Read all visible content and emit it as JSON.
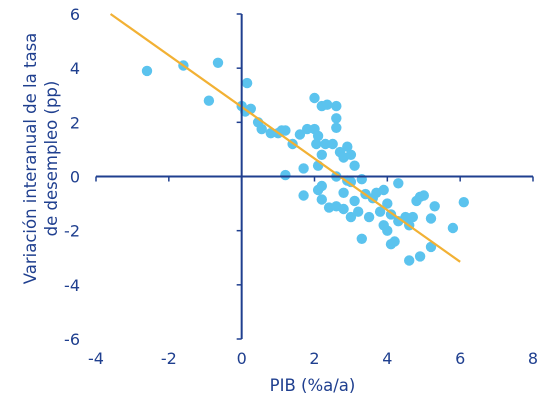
{
  "chart_data": {
    "type": "scatter",
    "xlabel": "PIB (%a/a)",
    "ylabel_lines": [
      "Variación interanual de la tasa",
      "de desempleo (pp)"
    ],
    "xlim": [
      -4,
      8
    ],
    "ylim": [
      -6,
      6
    ],
    "x_ticks": [
      -4,
      -2,
      0,
      2,
      4,
      6,
      8
    ],
    "y_ticks": [
      -6,
      -4,
      -2,
      0,
      2,
      4,
      6
    ],
    "grid": "none",
    "legend": "none",
    "colors": {
      "points": "#5bc3ee",
      "trendline": "#f2b134",
      "axes": "#1f3f8f",
      "text": "#1f3f8f"
    },
    "trendline": {
      "x": [
        -3.6,
        6.0
      ],
      "y": [
        6.0,
        -3.15
      ]
    },
    "points": [
      [
        -2.6,
        3.9
      ],
      [
        -1.6,
        4.1
      ],
      [
        -0.65,
        4.2
      ],
      [
        -0.9,
        2.8
      ],
      [
        0.15,
        3.45
      ],
      [
        0.0,
        2.6
      ],
      [
        0.1,
        2.4
      ],
      [
        0.25,
        2.5
      ],
      [
        0.45,
        2.0
      ],
      [
        0.55,
        1.75
      ],
      [
        0.8,
        1.6
      ],
      [
        1.0,
        1.6
      ],
      [
        1.1,
        1.7
      ],
      [
        1.2,
        1.7
      ],
      [
        1.4,
        1.2
      ],
      [
        1.6,
        1.55
      ],
      [
        1.8,
        1.75
      ],
      [
        2.0,
        1.75
      ],
      [
        2.1,
        1.5
      ],
      [
        2.05,
        1.2
      ],
      [
        2.0,
        2.9
      ],
      [
        2.2,
        2.6
      ],
      [
        2.35,
        2.65
      ],
      [
        2.6,
        2.6
      ],
      [
        2.6,
        2.15
      ],
      [
        2.6,
        1.8
      ],
      [
        2.3,
        1.2
      ],
      [
        2.5,
        1.2
      ],
      [
        2.2,
        0.8
      ],
      [
        2.1,
        0.4
      ],
      [
        2.7,
        0.9
      ],
      [
        2.8,
        0.7
      ],
      [
        2.9,
        1.1
      ],
      [
        3.0,
        0.8
      ],
      [
        3.1,
        0.4
      ],
      [
        2.6,
        0.0
      ],
      [
        2.9,
        -0.15
      ],
      [
        3.0,
        -0.2
      ],
      [
        3.3,
        -0.1
      ],
      [
        1.2,
        0.05
      ],
      [
        1.7,
        0.3
      ],
      [
        1.7,
        -0.7
      ],
      [
        2.1,
        -0.5
      ],
      [
        2.2,
        -0.35
      ],
      [
        2.2,
        -0.85
      ],
      [
        2.4,
        -1.15
      ],
      [
        2.6,
        -1.1
      ],
      [
        2.8,
        -0.6
      ],
      [
        2.8,
        -1.2
      ],
      [
        3.0,
        -1.5
      ],
      [
        3.1,
        -0.9
      ],
      [
        3.2,
        -1.3
      ],
      [
        3.3,
        -2.3
      ],
      [
        3.4,
        -0.65
      ],
      [
        3.5,
        -1.5
      ],
      [
        3.6,
        -0.8
      ],
      [
        3.7,
        -0.6
      ],
      [
        3.8,
        -1.3
      ],
      [
        3.9,
        -1.8
      ],
      [
        3.9,
        -0.5
      ],
      [
        4.0,
        -1.0
      ],
      [
        4.0,
        -2.0
      ],
      [
        4.1,
        -1.4
      ],
      [
        4.1,
        -2.5
      ],
      [
        4.2,
        -2.4
      ],
      [
        4.3,
        -0.25
      ],
      [
        4.3,
        -1.65
      ],
      [
        4.5,
        -1.5
      ],
      [
        4.6,
        -1.8
      ],
      [
        4.7,
        -1.5
      ],
      [
        4.6,
        -3.1
      ],
      [
        4.8,
        -0.9
      ],
      [
        4.9,
        -0.75
      ],
      [
        5.0,
        -0.7
      ],
      [
        4.9,
        -2.95
      ],
      [
        5.2,
        -1.55
      ],
      [
        5.3,
        -1.1
      ],
      [
        5.2,
        -2.6
      ],
      [
        5.8,
        -1.9
      ],
      [
        6.1,
        -0.95
      ]
    ]
  }
}
